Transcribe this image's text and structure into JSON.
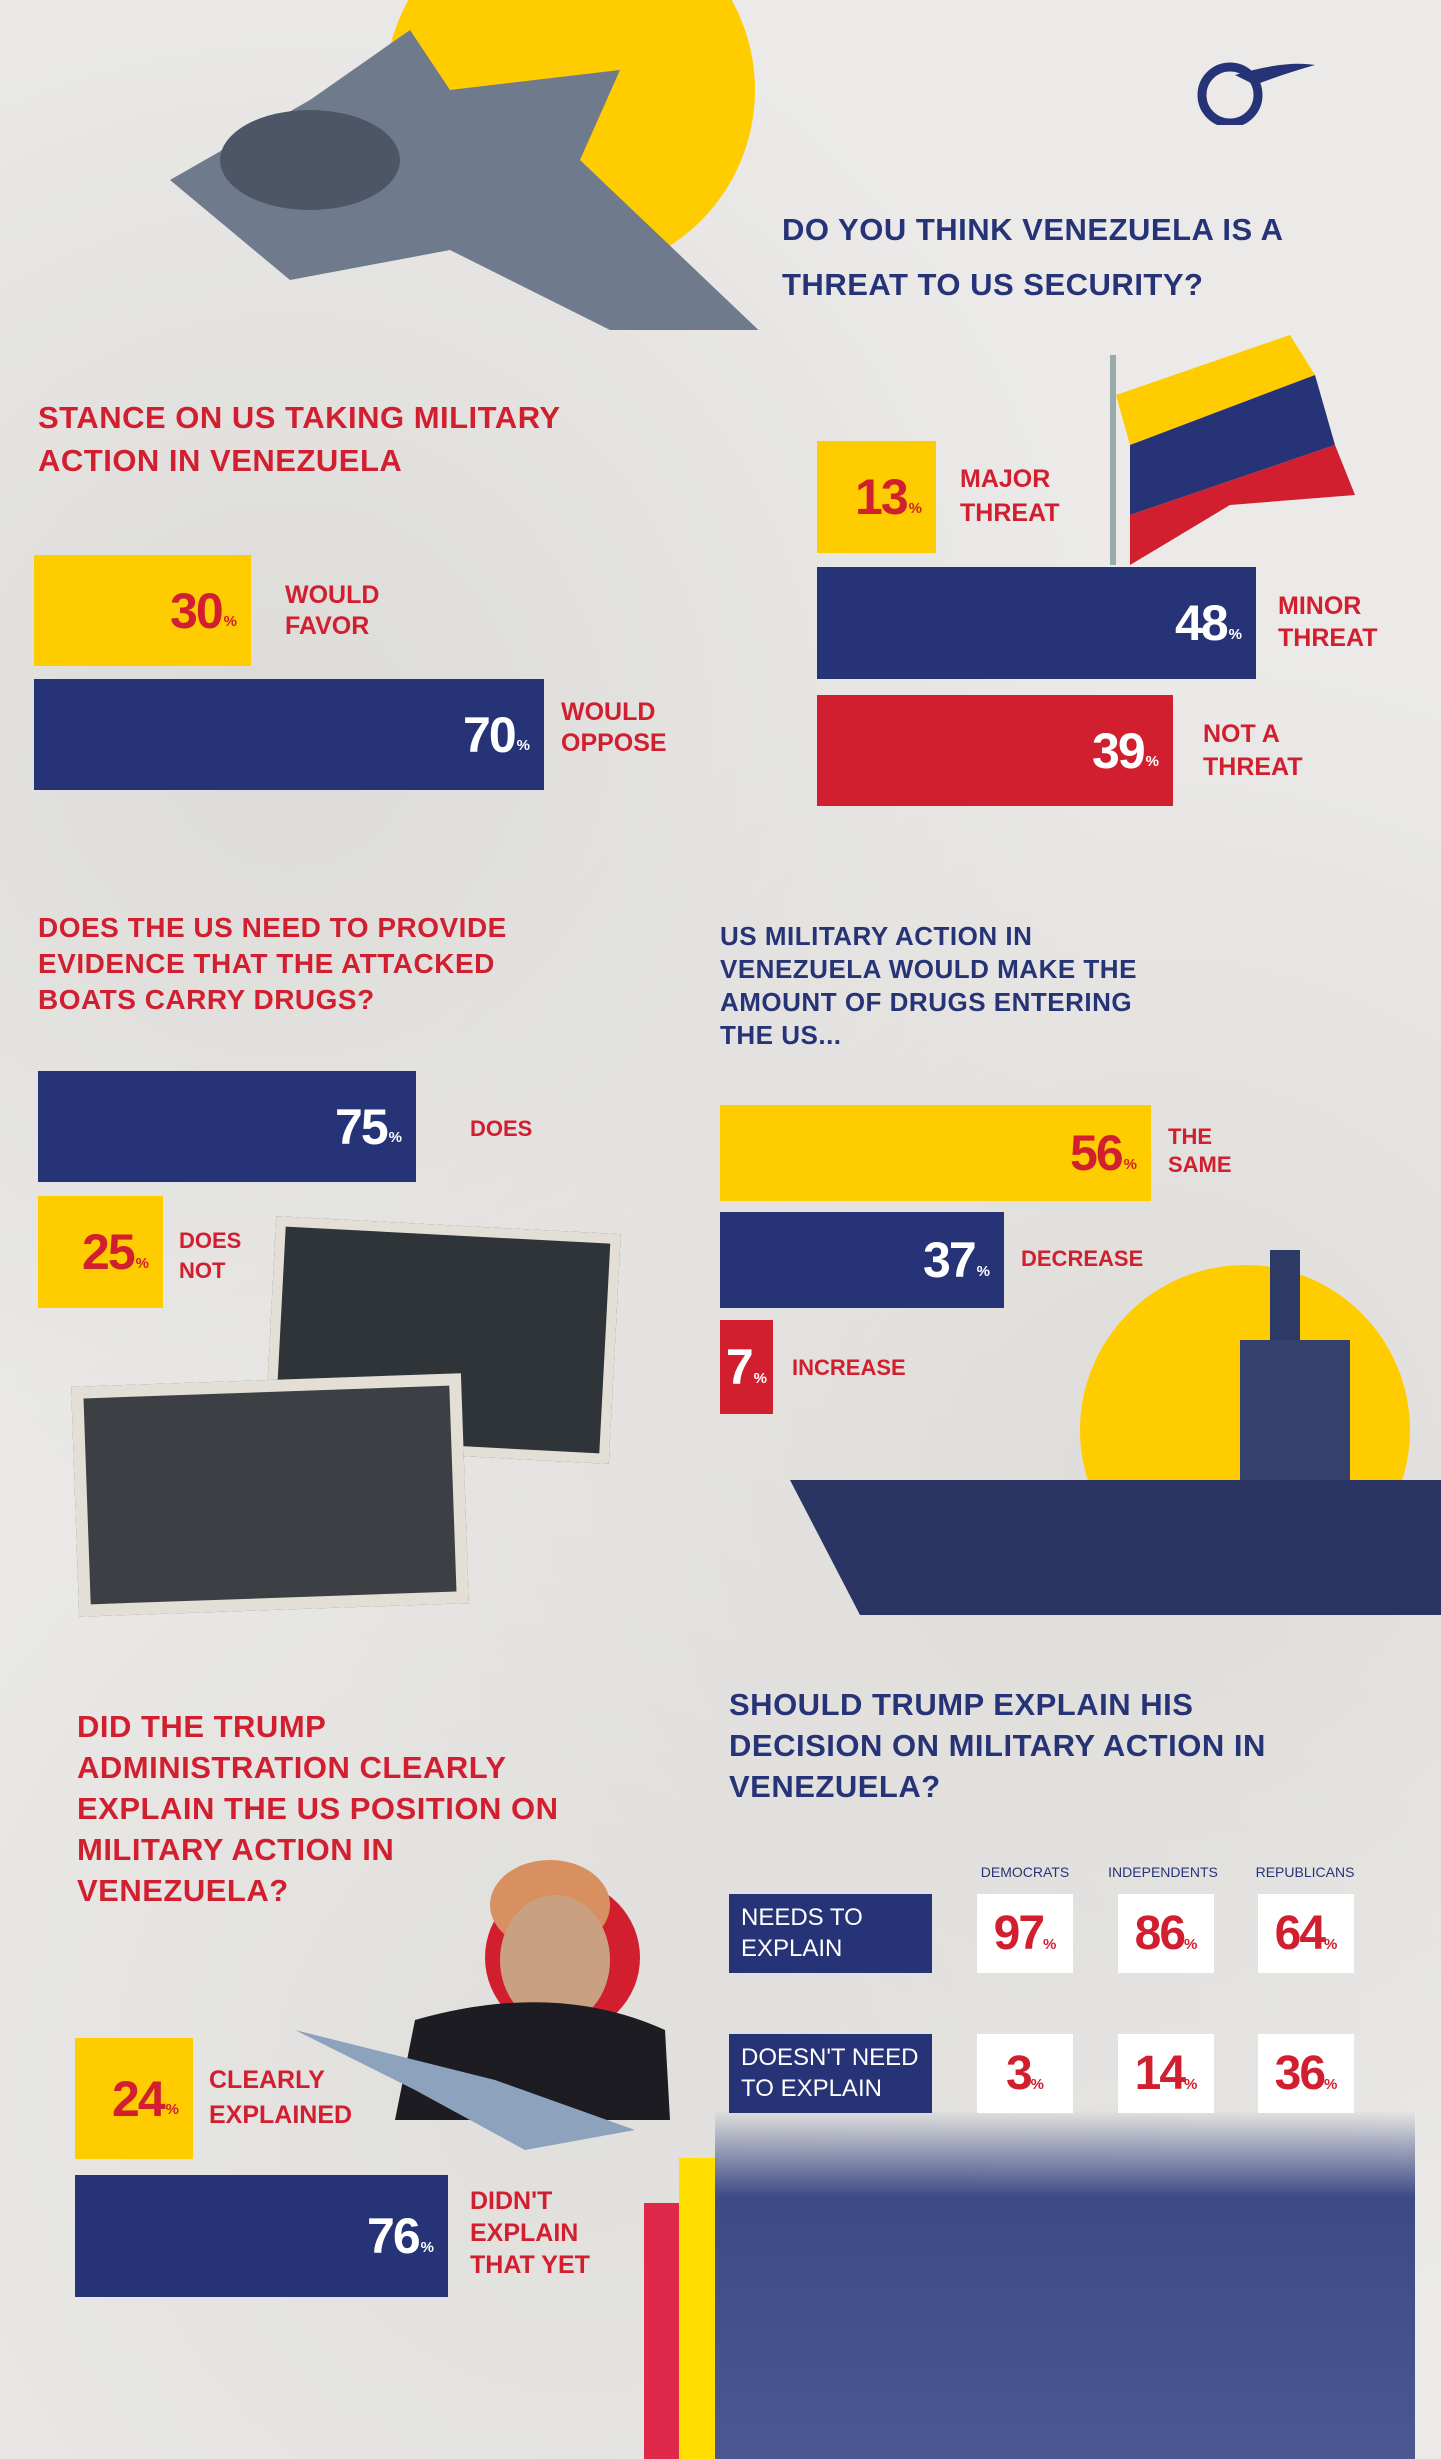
{
  "colors": {
    "navy": "#263477",
    "yellow": "#ffcc00",
    "red": "#d11f30"
  },
  "logo": {
    "icon": "al-mayadeen-logo-icon"
  },
  "military_stance": {
    "title": "STANCE ON US TAKING MILITARY ACTION IN VENEZUELA",
    "items": [
      {
        "value": "30",
        "unit": "%",
        "label": "WOULD\nFAVOR"
      },
      {
        "value": "70",
        "unit": "%",
        "label": "WOULD\nOPPOSE"
      }
    ]
  },
  "threat": {
    "title": "DO YOU THINK VENEZUELA IS A THREAT TO US SECURITY?",
    "items": [
      {
        "value": "13",
        "unit": "%",
        "label": "MAJOR\nTHREAT"
      },
      {
        "value": "48",
        "unit": "%",
        "label": "MINOR\nTHREAT"
      },
      {
        "value": "39",
        "unit": "%",
        "label": "NOT A\nTHREAT"
      }
    ]
  },
  "evidence": {
    "title": "DOES THE US NEED TO PROVIDE EVIDENCE THAT THE ATTACKED BOATS CARRY DRUGS?",
    "items": [
      {
        "value": "75",
        "unit": "%",
        "label": "DOES"
      },
      {
        "value": "25",
        "unit": "%",
        "label": "DOES\nNOT"
      }
    ]
  },
  "drugs": {
    "title": "US MILITARY ACTION IN VENEZUELA WOULD MAKE THE AMOUNT OF DRUGS ENTERING THE US...",
    "items": [
      {
        "value": "56",
        "unit": "%",
        "label": "THE\nSAME"
      },
      {
        "value": "37",
        "unit": "%",
        "label": "DECREASE"
      },
      {
        "value": "7",
        "unit": "%",
        "label": "INCREASE"
      }
    ]
  },
  "explained": {
    "title": "DID THE TRUMP ADMINISTRATION CLEARLY EXPLAIN THE US POSITION ON MILITARY ACTION IN VENEZUELA?",
    "items": [
      {
        "value": "24",
        "unit": "%",
        "label": "CLEARLY\nEXPLAINED"
      },
      {
        "value": "76",
        "unit": "%",
        "label": "DIDN'T\nEXPLAIN\nTHAT YET"
      }
    ]
  },
  "should_explain": {
    "title": "SHOULD TRUMP EXPLAIN HIS DECISION ON MILITARY ACTION IN VENEZUELA?",
    "columns": [
      "DEMOCRATS",
      "INDEPENDENTS",
      "REPUBLICANS"
    ],
    "rows": [
      {
        "label": "NEEDS TO\nEXPLAIN",
        "values": [
          "97",
          "86",
          "64"
        ]
      },
      {
        "label": "DOESN'T NEED\nTO EXPLAIN",
        "values": [
          "3",
          "14",
          "36"
        ]
      }
    ],
    "unit": "%"
  }
}
